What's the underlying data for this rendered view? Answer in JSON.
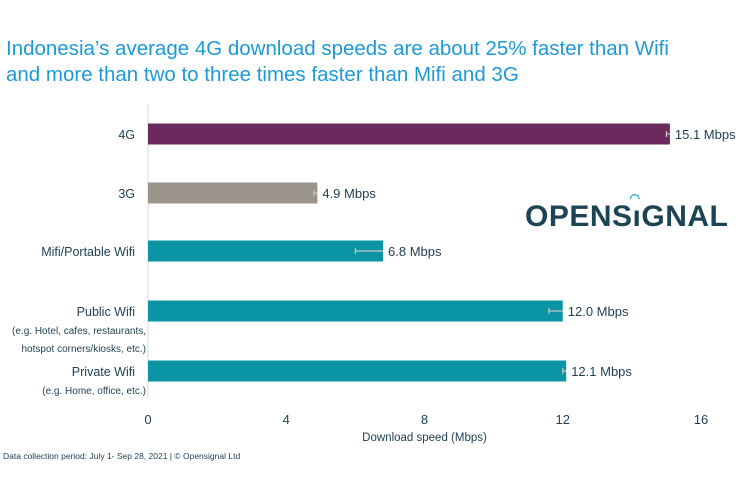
{
  "chart_data": {
    "type": "bar",
    "orientation": "horizontal",
    "title": "Indonesia’s average 4G download speeds are about 25% faster than Wifi and more than two to three times faster than Mifi and 3G",
    "title_lines": [
      "Indonesia’s average 4G download speeds are about 25% faster than Wifi",
      "and more than two to three times faster than Mifi and 3G"
    ],
    "categories": [
      {
        "label": "4G",
        "sublabel": []
      },
      {
        "label": "3G",
        "sublabel": []
      },
      {
        "label": "Mifi/Portable Wifi",
        "sublabel": []
      },
      {
        "label": "Public Wifi",
        "sublabel": [
          "(e.g. Hotel, cafes, restaurants,",
          "hotspot corners/kiosks, etc.)"
        ]
      },
      {
        "label": "Private Wifi",
        "sublabel": [
          "(e.g. Home, office, etc.)"
        ]
      }
    ],
    "values": [
      15.1,
      4.9,
      6.8,
      12.0,
      12.1
    ],
    "error_low": [
      15.0,
      4.8,
      6.0,
      11.6,
      12.0
    ],
    "data_labels": [
      "15.1 Mbps",
      "4.9 Mbps",
      "6.8 Mbps",
      "12.0 Mbps",
      "12.1 Mbps"
    ],
    "colors": [
      "#6b2a5e",
      "#9b948b",
      "#0b95a4",
      "#0b95a4",
      "#0b95a4"
    ],
    "xlabel": "Download speed (Mbps)",
    "ylabel": "",
    "xlim": [
      0,
      16
    ],
    "xticks": [
      0,
      4,
      8,
      12,
      16
    ],
    "grid": false
  },
  "logo": {
    "text": "OPENSIGNAL",
    "before_i": "OPENS",
    "i": "i",
    "after_i": "GNAL"
  },
  "footnote": "Data collection period: July 1- Sep 28, 2021 | © Opensignal Ltd"
}
